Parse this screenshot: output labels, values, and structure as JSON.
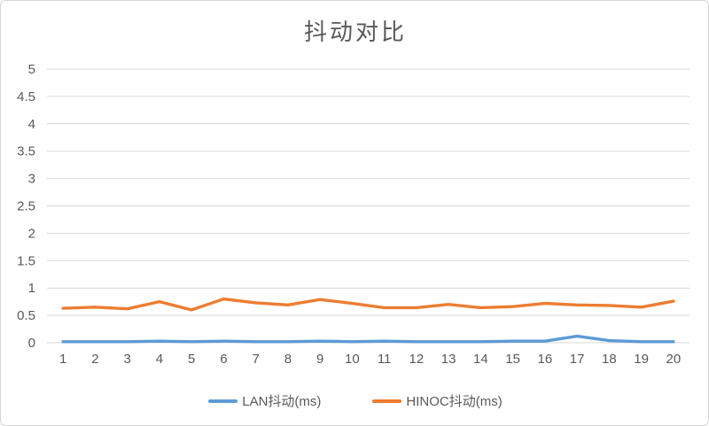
{
  "chart_data": {
    "type": "line",
    "title": "抖动对比",
    "xlabel": "",
    "ylabel": "",
    "x": [
      1,
      2,
      3,
      4,
      5,
      6,
      7,
      8,
      9,
      10,
      11,
      12,
      13,
      14,
      15,
      16,
      17,
      18,
      19,
      20
    ],
    "series": [
      {
        "name": "LAN抖动(ms)",
        "color": "#5B9BD5",
        "values": [
          0.02,
          0.02,
          0.02,
          0.03,
          0.02,
          0.03,
          0.02,
          0.02,
          0.03,
          0.02,
          0.03,
          0.02,
          0.02,
          0.02,
          0.03,
          0.03,
          0.12,
          0.04,
          0.02,
          0.02
        ]
      },
      {
        "name": "HINOC抖动(ms)",
        "color": "#ED7D31",
        "values": [
          0.63,
          0.65,
          0.62,
          0.75,
          0.6,
          0.8,
          0.73,
          0.69,
          0.79,
          0.72,
          0.64,
          0.64,
          0.7,
          0.64,
          0.66,
          0.72,
          0.69,
          0.68,
          0.65,
          0.76
        ]
      }
    ],
    "ylim": [
      0,
      5
    ],
    "yticks": [
      0,
      0.5,
      1,
      1.5,
      2,
      2.5,
      3,
      3.5,
      4,
      4.5,
      5
    ],
    "grid": true,
    "gridline_color": "#D9D9D9",
    "axis_label_color": "#595959",
    "legend_position": "bottom"
  }
}
